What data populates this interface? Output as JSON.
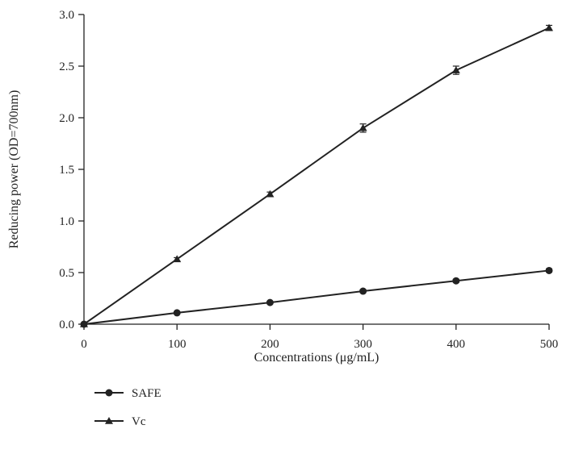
{
  "chart_data": {
    "type": "line",
    "title": "",
    "xlabel": "Concentrations (μg/mL)",
    "ylabel": "Reducing power (OD=700nm)",
    "x": [
      0,
      100,
      200,
      300,
      400,
      500
    ],
    "xlim": [
      0,
      500
    ],
    "ylim": [
      0,
      3.0
    ],
    "x_ticks": [
      "0",
      "100",
      "200",
      "300",
      "400",
      "500"
    ],
    "y_ticks": [
      "0.0",
      "0.5",
      "1.0",
      "1.5",
      "2.0",
      "2.5",
      "3.0"
    ],
    "grid": false,
    "legend_position": "bottom-left",
    "series": [
      {
        "name": "SAFE",
        "marker": "circle",
        "values": [
          0.0,
          0.11,
          0.21,
          0.32,
          0.42,
          0.52
        ],
        "errors": [
          0,
          0.01,
          0.01,
          0.015,
          0.015,
          0.015
        ]
      },
      {
        "name": "Vc",
        "marker": "triangle",
        "values": [
          0.0,
          0.63,
          1.26,
          1.9,
          2.46,
          2.87
        ],
        "errors": [
          0,
          0.015,
          0.02,
          0.04,
          0.04,
          0.025
        ]
      }
    ],
    "color": "#222222"
  }
}
